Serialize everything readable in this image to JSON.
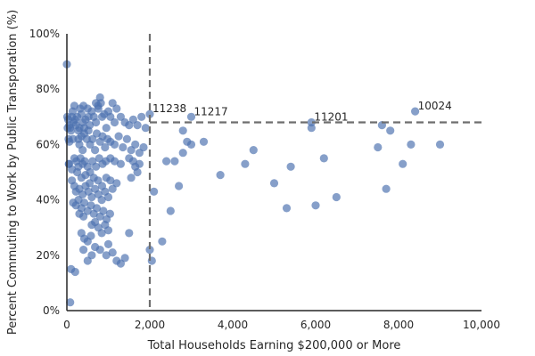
{
  "chart_data": {
    "type": "scatter",
    "xlabel": "Total Households Earning $200,000 or More",
    "ylabel": "Percent Commuting to Work by Public Transporation (%)",
    "xlim": [
      0,
      10000
    ],
    "ylim": [
      0,
      100
    ],
    "x_ticks": [
      0,
      2000,
      4000,
      6000,
      8000,
      10000
    ],
    "x_tick_labels": [
      "0",
      "2,000",
      "4,000",
      "6,000",
      "8,000",
      "10,000"
    ],
    "y_ticks": [
      0,
      20,
      40,
      60,
      80,
      100
    ],
    "y_tick_labels": [
      "0%",
      "20%",
      "40%",
      "60%",
      "80%",
      "100%"
    ],
    "grid": false,
    "point_color": "#4C72B0",
    "reference_lines": [
      {
        "orientation": "vertical",
        "x": 2000,
        "y_from": 0,
        "y_to": 100
      },
      {
        "orientation": "horizontal",
        "y": 68,
        "x_from": 2000,
        "x_to": 10000
      }
    ],
    "annotations": [
      {
        "text": "11238",
        "x": 2000,
        "y": 71
      },
      {
        "text": "11217",
        "x": 3000,
        "y": 70
      },
      {
        "text": "11201",
        "x": 5900,
        "y": 68
      },
      {
        "text": "10024",
        "x": 8400,
        "y": 72
      }
    ],
    "points": [
      [
        0,
        89
      ],
      [
        10,
        70
      ],
      [
        20,
        66
      ],
      [
        40,
        62
      ],
      [
        50,
        53
      ],
      [
        30,
        69
      ],
      [
        60,
        67
      ],
      [
        80,
        66
      ],
      [
        100,
        65
      ],
      [
        120,
        70
      ],
      [
        140,
        72
      ],
      [
        160,
        68
      ],
      [
        180,
        74
      ],
      [
        200,
        69
      ],
      [
        220,
        67
      ],
      [
        250,
        70
      ],
      [
        280,
        65
      ],
      [
        300,
        66
      ],
      [
        320,
        73
      ],
      [
        350,
        71
      ],
      [
        380,
        68
      ],
      [
        400,
        74
      ],
      [
        420,
        66
      ],
      [
        450,
        69
      ],
      [
        500,
        73
      ],
      [
        520,
        70
      ],
      [
        550,
        67
      ],
      [
        600,
        72
      ],
      [
        650,
        70
      ],
      [
        700,
        68
      ],
      [
        750,
        74
      ],
      [
        800,
        77
      ],
      [
        820,
        75
      ],
      [
        850,
        70
      ],
      [
        900,
        71
      ],
      [
        950,
        66
      ],
      [
        1000,
        72
      ],
      [
        1050,
        70
      ],
      [
        1100,
        75
      ],
      [
        1150,
        68
      ],
      [
        1200,
        73
      ],
      [
        1300,
        70
      ],
      [
        1400,
        68
      ],
      [
        1500,
        67
      ],
      [
        1600,
        69
      ],
      [
        1700,
        67
      ],
      [
        1800,
        70
      ],
      [
        1900,
        66
      ],
      [
        280,
        62
      ],
      [
        300,
        60
      ],
      [
        350,
        63
      ],
      [
        380,
        58
      ],
      [
        420,
        64
      ],
      [
        480,
        62
      ],
      [
        520,
        65
      ],
      [
        560,
        60
      ],
      [
        620,
        62
      ],
      [
        680,
        58
      ],
      [
        720,
        64
      ],
      [
        800,
        61
      ],
      [
        860,
        63
      ],
      [
        920,
        59
      ],
      [
        980,
        62
      ],
      [
        1050,
        61
      ],
      [
        1150,
        60
      ],
      [
        1250,
        63
      ],
      [
        1350,
        59
      ],
      [
        1450,
        62
      ],
      [
        1550,
        58
      ],
      [
        1650,
        60
      ],
      [
        1750,
        57
      ],
      [
        1850,
        59
      ],
      [
        150,
        62
      ],
      [
        60,
        61
      ],
      [
        700,
        75
      ],
      [
        760,
        73
      ],
      [
        50,
        53
      ],
      [
        120,
        51
      ],
      [
        180,
        55
      ],
      [
        230,
        54
      ],
      [
        280,
        52
      ],
      [
        330,
        55
      ],
      [
        380,
        53
      ],
      [
        430,
        54
      ],
      [
        500,
        52
      ],
      [
        560,
        50
      ],
      [
        620,
        54
      ],
      [
        700,
        52
      ],
      [
        780,
        55
      ],
      [
        860,
        53
      ],
      [
        940,
        54
      ],
      [
        1050,
        55
      ],
      [
        1150,
        54
      ],
      [
        1300,
        53
      ],
      [
        1500,
        55
      ],
      [
        1600,
        54
      ],
      [
        1650,
        52
      ],
      [
        1700,
        50
      ],
      [
        1750,
        53
      ],
      [
        1550,
        48
      ],
      [
        250,
        50
      ],
      [
        350,
        48
      ],
      [
        450,
        49
      ],
      [
        550,
        46
      ],
      [
        650,
        48
      ],
      [
        750,
        47
      ],
      [
        850,
        45
      ],
      [
        950,
        48
      ],
      [
        1050,
        47
      ],
      [
        1200,
        46
      ],
      [
        120,
        47
      ],
      [
        180,
        45
      ],
      [
        220,
        43
      ],
      [
        300,
        44
      ],
      [
        380,
        42
      ],
      [
        450,
        45
      ],
      [
        520,
        43
      ],
      [
        600,
        41
      ],
      [
        680,
        44
      ],
      [
        760,
        42
      ],
      [
        840,
        40
      ],
      [
        920,
        43
      ],
      [
        1000,
        41
      ],
      [
        1100,
        44
      ],
      [
        150,
        39
      ],
      [
        220,
        38
      ],
      [
        280,
        40
      ],
      [
        350,
        37
      ],
      [
        420,
        39
      ],
      [
        500,
        36
      ],
      [
        580,
        38
      ],
      [
        650,
        35
      ],
      [
        720,
        37
      ],
      [
        800,
        34
      ],
      [
        880,
        36
      ],
      [
        960,
        33
      ],
      [
        1040,
        35
      ],
      [
        300,
        35
      ],
      [
        400,
        34
      ],
      [
        600,
        31
      ],
      [
        680,
        32
      ],
      [
        760,
        30
      ],
      [
        840,
        28
      ],
      [
        920,
        31
      ],
      [
        1000,
        29
      ],
      [
        350,
        28
      ],
      [
        420,
        26
      ],
      [
        500,
        25
      ],
      [
        580,
        27
      ],
      [
        680,
        23
      ],
      [
        800,
        22
      ],
      [
        950,
        20
      ],
      [
        1100,
        21
      ],
      [
        1200,
        18
      ],
      [
        1300,
        17
      ],
      [
        1500,
        28
      ],
      [
        400,
        22
      ],
      [
        500,
        18
      ],
      [
        600,
        20
      ],
      [
        1400,
        19
      ],
      [
        1000,
        24
      ],
      [
        100,
        15
      ],
      [
        200,
        14
      ],
      [
        80,
        3
      ],
      [
        2000,
        22
      ],
      [
        2050,
        18
      ],
      [
        2100,
        43
      ],
      [
        2300,
        25
      ],
      [
        2400,
        54
      ],
      [
        2500,
        36
      ],
      [
        2600,
        54
      ],
      [
        2700,
        45
      ],
      [
        2800,
        57
      ],
      [
        2800,
        65
      ],
      [
        2900,
        61
      ],
      [
        3000,
        60
      ],
      [
        3300,
        61
      ],
      [
        3700,
        49
      ],
      [
        4300,
        53
      ],
      [
        4500,
        58
      ],
      [
        5000,
        46
      ],
      [
        5300,
        37
      ],
      [
        5400,
        52
      ],
      [
        5900,
        66
      ],
      [
        6000,
        38
      ],
      [
        6200,
        55
      ],
      [
        6500,
        41
      ],
      [
        7500,
        59
      ],
      [
        7600,
        67
      ],
      [
        7700,
        44
      ],
      [
        7800,
        65
      ],
      [
        8100,
        53
      ],
      [
        8300,
        60
      ],
      [
        9000,
        60
      ],
      [
        2000,
        71
      ],
      [
        3000,
        70
      ],
      [
        5900,
        68
      ],
      [
        8400,
        72
      ]
    ]
  }
}
